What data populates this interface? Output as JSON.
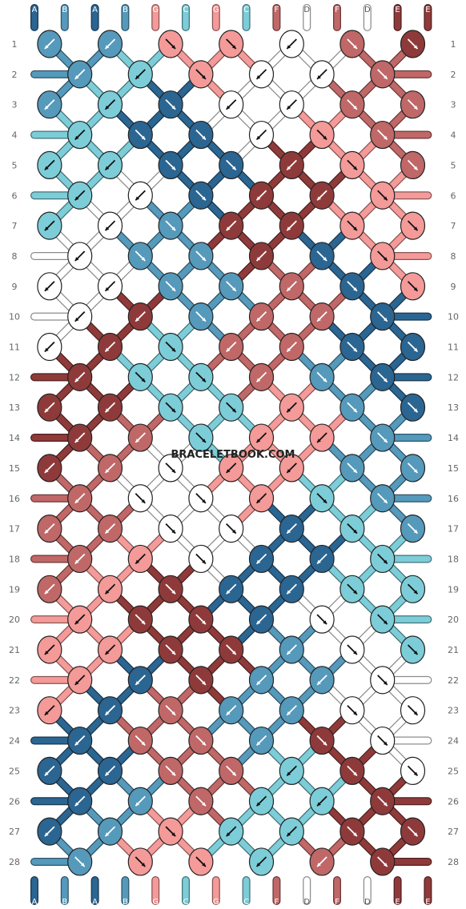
{
  "watermark": "BRACELETBOOK.COM",
  "strings_top": [
    "A",
    "B",
    "A",
    "B",
    "G",
    "C",
    "G",
    "C",
    "F",
    "D",
    "F",
    "D",
    "E",
    "E"
  ],
  "strings_bottom": [
    "A",
    "B",
    "A",
    "B",
    "G",
    "C",
    "G",
    "C",
    "F",
    "D",
    "F",
    "D",
    "E",
    "E"
  ],
  "colors": {
    "A": "#2b6592",
    "B": "#5599bb",
    "C": "#7ccdd8",
    "D": "#ffffff",
    "E": "#8f3a3a",
    "F": "#c06767",
    "G": "#f49a98"
  },
  "dark_label_colors": [
    "D"
  ],
  "row_numbers": [
    1,
    2,
    3,
    4,
    5,
    6,
    7,
    8,
    9,
    10,
    11,
    12,
    13,
    14,
    15,
    16,
    17,
    18,
    19,
    20,
    21,
    22,
    23,
    24,
    25,
    26,
    27,
    28
  ],
  "knots": [
    [
      {
        "c": "B",
        "d": "L"
      },
      {
        "c": "B",
        "d": "L"
      },
      {
        "c": "G",
        "d": "R"
      },
      {
        "c": "G",
        "d": "R"
      },
      {
        "c": "D",
        "d": "L"
      },
      {
        "c": "F",
        "d": "R"
      },
      {
        "c": "E",
        "d": "R"
      }
    ],
    [
      {
        "c": "B",
        "d": "L"
      },
      {
        "c": "C",
        "d": "L"
      },
      {
        "c": "G",
        "d": "R"
      },
      {
        "c": "D",
        "d": "L"
      },
      {
        "c": "D",
        "d": "L"
      },
      {
        "c": "F",
        "d": "R"
      }
    ],
    [
      {
        "c": "B",
        "d": "L"
      },
      {
        "c": "C",
        "d": "L"
      },
      {
        "c": "A",
        "d": "R"
      },
      {
        "c": "D",
        "d": "L"
      },
      {
        "c": "D",
        "d": "L"
      },
      {
        "c": "F",
        "d": "R"
      },
      {
        "c": "F",
        "d": "R"
      }
    ],
    [
      {
        "c": "C",
        "d": "L"
      },
      {
        "c": "A",
        "d": "R"
      },
      {
        "c": "A",
        "d": "R"
      },
      {
        "c": "D",
        "d": "L"
      },
      {
        "c": "G",
        "d": "R"
      },
      {
        "c": "F",
        "d": "R"
      }
    ],
    [
      {
        "c": "C",
        "d": "L"
      },
      {
        "c": "C",
        "d": "L"
      },
      {
        "c": "A",
        "d": "R"
      },
      {
        "c": "A",
        "d": "R"
      },
      {
        "c": "E",
        "d": "L"
      },
      {
        "c": "G",
        "d": "R"
      },
      {
        "c": "F",
        "d": "R"
      }
    ],
    [
      {
        "c": "C",
        "d": "L"
      },
      {
        "c": "D",
        "d": "L"
      },
      {
        "c": "A",
        "d": "R"
      },
      {
        "c": "E",
        "d": "L"
      },
      {
        "c": "E",
        "d": "L"
      },
      {
        "c": "G",
        "d": "R"
      }
    ],
    [
      {
        "c": "C",
        "d": "L"
      },
      {
        "c": "D",
        "d": "L"
      },
      {
        "c": "B",
        "d": "R"
      },
      {
        "c": "E",
        "d": "L"
      },
      {
        "c": "E",
        "d": "L"
      },
      {
        "c": "G",
        "d": "R"
      },
      {
        "c": "G",
        "d": "R"
      }
    ],
    [
      {
        "c": "D",
        "d": "L"
      },
      {
        "c": "B",
        "d": "R"
      },
      {
        "c": "B",
        "d": "R"
      },
      {
        "c": "E",
        "d": "L"
      },
      {
        "c": "A",
        "d": "R"
      },
      {
        "c": "G",
        "d": "R"
      }
    ],
    [
      {
        "c": "D",
        "d": "L"
      },
      {
        "c": "D",
        "d": "L"
      },
      {
        "c": "B",
        "d": "R"
      },
      {
        "c": "B",
        "d": "R"
      },
      {
        "c": "F",
        "d": "L"
      },
      {
        "c": "A",
        "d": "R"
      },
      {
        "c": "G",
        "d": "R"
      }
    ],
    [
      {
        "c": "D",
        "d": "L"
      },
      {
        "c": "E",
        "d": "L"
      },
      {
        "c": "B",
        "d": "R"
      },
      {
        "c": "F",
        "d": "L"
      },
      {
        "c": "F",
        "d": "L"
      },
      {
        "c": "A",
        "d": "R"
      }
    ],
    [
      {
        "c": "D",
        "d": "L"
      },
      {
        "c": "E",
        "d": "L"
      },
      {
        "c": "C",
        "d": "R"
      },
      {
        "c": "F",
        "d": "L"
      },
      {
        "c": "F",
        "d": "L"
      },
      {
        "c": "A",
        "d": "R"
      },
      {
        "c": "A",
        "d": "R"
      }
    ],
    [
      {
        "c": "E",
        "d": "L"
      },
      {
        "c": "C",
        "d": "R"
      },
      {
        "c": "C",
        "d": "R"
      },
      {
        "c": "F",
        "d": "L"
      },
      {
        "c": "B",
        "d": "R"
      },
      {
        "c": "A",
        "d": "R"
      }
    ],
    [
      {
        "c": "E",
        "d": "L"
      },
      {
        "c": "E",
        "d": "L"
      },
      {
        "c": "C",
        "d": "R"
      },
      {
        "c": "C",
        "d": "R"
      },
      {
        "c": "G",
        "d": "L"
      },
      {
        "c": "B",
        "d": "R"
      },
      {
        "c": "A",
        "d": "R"
      }
    ],
    [
      {
        "c": "E",
        "d": "L"
      },
      {
        "c": "F",
        "d": "L"
      },
      {
        "c": "C",
        "d": "R"
      },
      {
        "c": "G",
        "d": "L"
      },
      {
        "c": "G",
        "d": "L"
      },
      {
        "c": "B",
        "d": "R"
      }
    ],
    [
      {
        "c": "E",
        "d": "L"
      },
      {
        "c": "F",
        "d": "L"
      },
      {
        "c": "D",
        "d": "R"
      },
      {
        "c": "G",
        "d": "L"
      },
      {
        "c": "G",
        "d": "L"
      },
      {
        "c": "B",
        "d": "R"
      },
      {
        "c": "B",
        "d": "R"
      }
    ],
    [
      {
        "c": "F",
        "d": "L"
      },
      {
        "c": "D",
        "d": "R"
      },
      {
        "c": "D",
        "d": "R"
      },
      {
        "c": "G",
        "d": "L"
      },
      {
        "c": "C",
        "d": "R"
      },
      {
        "c": "B",
        "d": "R"
      }
    ],
    [
      {
        "c": "F",
        "d": "L"
      },
      {
        "c": "F",
        "d": "L"
      },
      {
        "c": "D",
        "d": "R"
      },
      {
        "c": "D",
        "d": "R"
      },
      {
        "c": "A",
        "d": "L"
      },
      {
        "c": "C",
        "d": "R"
      },
      {
        "c": "B",
        "d": "R"
      }
    ],
    [
      {
        "c": "F",
        "d": "L"
      },
      {
        "c": "G",
        "d": "L"
      },
      {
        "c": "D",
        "d": "R"
      },
      {
        "c": "A",
        "d": "L"
      },
      {
        "c": "A",
        "d": "L"
      },
      {
        "c": "C",
        "d": "R"
      }
    ],
    [
      {
        "c": "F",
        "d": "L"
      },
      {
        "c": "G",
        "d": "L"
      },
      {
        "c": "E",
        "d": "R"
      },
      {
        "c": "A",
        "d": "L"
      },
      {
        "c": "A",
        "d": "L"
      },
      {
        "c": "C",
        "d": "R"
      },
      {
        "c": "C",
        "d": "R"
      }
    ],
    [
      {
        "c": "G",
        "d": "L"
      },
      {
        "c": "E",
        "d": "R"
      },
      {
        "c": "E",
        "d": "R"
      },
      {
        "c": "A",
        "d": "L"
      },
      {
        "c": "D",
        "d": "R"
      },
      {
        "c": "C",
        "d": "R"
      }
    ],
    [
      {
        "c": "G",
        "d": "L"
      },
      {
        "c": "G",
        "d": "L"
      },
      {
        "c": "E",
        "d": "R"
      },
      {
        "c": "E",
        "d": "R"
      },
      {
        "c": "B",
        "d": "L"
      },
      {
        "c": "D",
        "d": "R"
      },
      {
        "c": "C",
        "d": "R"
      }
    ],
    [
      {
        "c": "G",
        "d": "L"
      },
      {
        "c": "A",
        "d": "L"
      },
      {
        "c": "E",
        "d": "R"
      },
      {
        "c": "B",
        "d": "L"
      },
      {
        "c": "B",
        "d": "L"
      },
      {
        "c": "D",
        "d": "R"
      }
    ],
    [
      {
        "c": "G",
        "d": "L"
      },
      {
        "c": "A",
        "d": "L"
      },
      {
        "c": "F",
        "d": "R"
      },
      {
        "c": "B",
        "d": "L"
      },
      {
        "c": "B",
        "d": "L"
      },
      {
        "c": "D",
        "d": "R"
      },
      {
        "c": "D",
        "d": "R"
      }
    ],
    [
      {
        "c": "A",
        "d": "L"
      },
      {
        "c": "F",
        "d": "R"
      },
      {
        "c": "F",
        "d": "R"
      },
      {
        "c": "B",
        "d": "L"
      },
      {
        "c": "E",
        "d": "R"
      },
      {
        "c": "D",
        "d": "R"
      }
    ],
    [
      {
        "c": "A",
        "d": "L"
      },
      {
        "c": "A",
        "d": "L"
      },
      {
        "c": "F",
        "d": "R"
      },
      {
        "c": "F",
        "d": "R"
      },
      {
        "c": "C",
        "d": "L"
      },
      {
        "c": "E",
        "d": "R"
      },
      {
        "c": "D",
        "d": "R"
      }
    ],
    [
      {
        "c": "A",
        "d": "L"
      },
      {
        "c": "B",
        "d": "L"
      },
      {
        "c": "F",
        "d": "R"
      },
      {
        "c": "C",
        "d": "L"
      },
      {
        "c": "C",
        "d": "L"
      },
      {
        "c": "E",
        "d": "R"
      }
    ],
    [
      {
        "c": "A",
        "d": "L"
      },
      {
        "c": "B",
        "d": "L"
      },
      {
        "c": "G",
        "d": "R"
      },
      {
        "c": "C",
        "d": "L"
      },
      {
        "c": "C",
        "d": "L"
      },
      {
        "c": "E",
        "d": "R"
      },
      {
        "c": "E",
        "d": "R"
      }
    ],
    [
      {
        "c": "B",
        "d": "R"
      },
      {
        "c": "G",
        "d": "R"
      },
      {
        "c": "G",
        "d": "R"
      },
      {
        "c": "C",
        "d": "L"
      },
      {
        "c": "F",
        "d": "L"
      },
      {
        "c": "E",
        "d": "R"
      }
    ]
  ]
}
